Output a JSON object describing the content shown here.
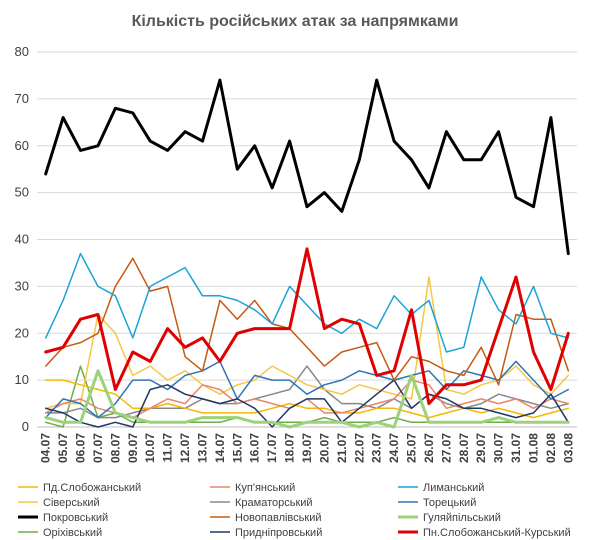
{
  "chart_data": {
    "type": "line",
    "title": "Кількість російських атак за напрямками",
    "ylim": [
      0,
      80
    ],
    "yticks": [
      0,
      10,
      20,
      30,
      40,
      50,
      60,
      70,
      80
    ],
    "grid": true,
    "legend_position": "bottom",
    "x": [
      "04.07",
      "05.07",
      "06.07",
      "07.07",
      "08.07",
      "09.07",
      "10.07",
      "11.07",
      "12.07",
      "13.07",
      "14.07",
      "15.07",
      "16.07",
      "17.07",
      "18.07",
      "19.07",
      "20.07",
      "21.07",
      "22.07",
      "23.07",
      "24.07",
      "25.07",
      "26.07",
      "27.07",
      "28.07",
      "29.07",
      "30.07",
      "31.07",
      "01.08",
      "02.08",
      "03.08"
    ],
    "series": [
      {
        "name": "Пд.Слобожанський",
        "color": "#f5b800",
        "width": 1.5,
        "values": [
          10,
          10,
          9,
          8,
          7,
          4,
          4,
          5,
          4,
          3,
          3,
          3,
          3,
          4,
          5,
          4,
          4,
          3,
          3,
          4,
          4,
          3,
          2,
          3,
          4,
          3,
          4,
          3,
          2,
          3,
          4
        ]
      },
      {
        "name": "Куп'янський",
        "color": "#e8866a",
        "width": 1.5,
        "values": [
          3,
          5,
          6,
          4,
          3,
          2,
          4,
          6,
          5,
          9,
          8,
          5,
          6,
          5,
          4,
          6,
          3,
          3,
          4,
          5,
          6,
          10,
          9,
          4,
          5,
          6,
          5,
          6,
          4,
          6,
          5
        ]
      },
      {
        "name": "Лиманський",
        "color": "#1aa3d9",
        "width": 1.5,
        "values": [
          19,
          27,
          37,
          30,
          28,
          19,
          30,
          32,
          34,
          28,
          28,
          27,
          25,
          22,
          30,
          26,
          22,
          20,
          23,
          21,
          28,
          24,
          27,
          16,
          17,
          32,
          25,
          22,
          30,
          20,
          19
        ]
      },
      {
        "name": "Сіверський",
        "color": "#f7c744",
        "width": 1.5,
        "values": [
          4,
          5,
          5,
          24,
          20,
          11,
          13,
          10,
          12,
          9,
          7,
          9,
          10,
          13,
          11,
          9,
          8,
          7,
          9,
          8,
          7,
          6,
          32,
          8,
          7,
          9,
          10,
          13,
          9,
          7,
          11
        ]
      },
      {
        "name": "Краматорський",
        "color": "#888888",
        "width": 1.5,
        "values": [
          3,
          3,
          4,
          2,
          2,
          3,
          4,
          4,
          4,
          6,
          5,
          5,
          6,
          7,
          8,
          13,
          8,
          5,
          5,
          4,
          6,
          4,
          7,
          5,
          4,
          5,
          7,
          6,
          5,
          4,
          5
        ]
      },
      {
        "name": "Торецький",
        "color": "#2e75b6",
        "width": 1.5,
        "values": [
          2,
          6,
          5,
          2,
          5,
          10,
          10,
          8,
          11,
          12,
          14,
          6,
          11,
          10,
          10,
          7,
          9,
          10,
          12,
          11,
          10,
          11,
          12,
          8,
          12,
          11,
          10,
          14,
          10,
          6,
          8
        ]
      },
      {
        "name": "Покровський",
        "color": "#000000",
        "width": 3,
        "values": [
          54,
          66,
          59,
          60,
          68,
          67,
          61,
          59,
          63,
          61,
          74,
          55,
          60,
          51,
          61,
          47,
          50,
          46,
          57,
          74,
          61,
          57,
          51,
          63,
          57,
          57,
          63,
          49,
          47,
          66,
          37
        ]
      },
      {
        "name": "Новопавлівський",
        "color": "#c55a11",
        "width": 1.5,
        "values": [
          13,
          17,
          18,
          20,
          30,
          36,
          29,
          30,
          15,
          12,
          27,
          23,
          27,
          22,
          21,
          17,
          13,
          16,
          17,
          18,
          10,
          15,
          14,
          12,
          11,
          17,
          9,
          24,
          23,
          23,
          12
        ]
      },
      {
        "name": "Гуляйпільський",
        "color": "#9bd27a",
        "width": 3,
        "values": [
          2,
          1,
          1,
          12,
          3,
          2,
          1,
          1,
          1,
          2,
          2,
          2,
          1,
          1,
          0,
          1,
          1,
          1,
          0,
          1,
          0,
          11,
          1,
          1,
          1,
          1,
          2,
          1,
          1,
          1,
          1
        ]
      },
      {
        "name": "Оріхівський",
        "color": "#70ad47",
        "width": 1.5,
        "values": [
          1,
          0,
          13,
          2,
          3,
          1,
          1,
          1,
          1,
          1,
          1,
          2,
          1,
          1,
          1,
          1,
          2,
          1,
          1,
          1,
          2,
          1,
          1,
          1,
          1,
          1,
          1,
          1,
          1,
          1,
          1
        ]
      },
      {
        "name": "Придніпровський",
        "color": "#1f3864",
        "width": 1.5,
        "values": [
          4,
          3,
          1,
          0,
          1,
          0,
          8,
          9,
          7,
          6,
          5,
          6,
          4,
          0,
          4,
          6,
          6,
          1,
          4,
          7,
          10,
          4,
          7,
          6,
          4,
          4,
          3,
          2,
          3,
          7,
          1
        ]
      },
      {
        "name": "Пн.Слобожанський-Курський",
        "color": "#e00000",
        "width": 3,
        "values": [
          16,
          17,
          23,
          24,
          8,
          16,
          14,
          21,
          17,
          19,
          14,
          20,
          21,
          21,
          21,
          38,
          21,
          23,
          22,
          11,
          12,
          25,
          5,
          9,
          9,
          10,
          21,
          32,
          16,
          8,
          20
        ]
      }
    ]
  }
}
